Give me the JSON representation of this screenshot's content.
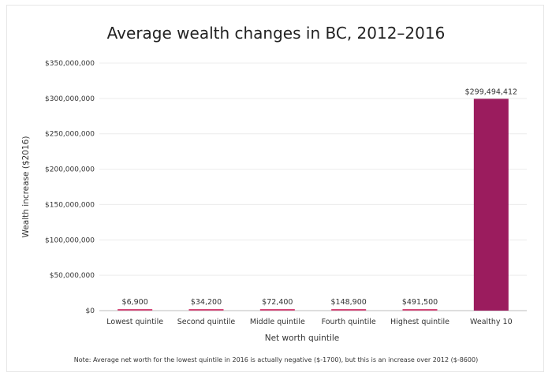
{
  "chart_data": {
    "type": "bar",
    "title": "Average wealth changes in BC, 2012–2016",
    "xlabel": "Net worth quintile",
    "ylabel": "Wealth increase ($2016)",
    "categories": [
      "Lowest quintile",
      "Second quintile",
      "Middle quintile",
      "Fourth quintile",
      "Highest quintile",
      "Wealthy 10"
    ],
    "values": [
      6900,
      34200,
      72400,
      148900,
      491500,
      299494412
    ],
    "data_labels": [
      "$6,900",
      "$34,200",
      "$72,400",
      "$148,900",
      "$491,500",
      "$299,494,412"
    ],
    "y_ticks": [
      0,
      50000000,
      100000000,
      150000000,
      200000000,
      250000000,
      300000000,
      350000000
    ],
    "y_tick_labels": [
      "$0",
      "$50,000,000",
      "$100,000,000",
      "$150,000,000",
      "$200,000,000",
      "$250,000,000",
      "$300,000,000",
      "$350,000,000"
    ],
    "ylim": [
      0,
      350000000
    ],
    "grid": true,
    "bar_colors": [
      "#d44a7a",
      "#d44a7a",
      "#d44a7a",
      "#d44a7a",
      "#d44a7a",
      "#9b1c5e"
    ],
    "note": "Note: Average net worth for the lowest quintile in 2016 is actually negative ($-1700), but this is an increase over 2012 ($-8600)"
  }
}
